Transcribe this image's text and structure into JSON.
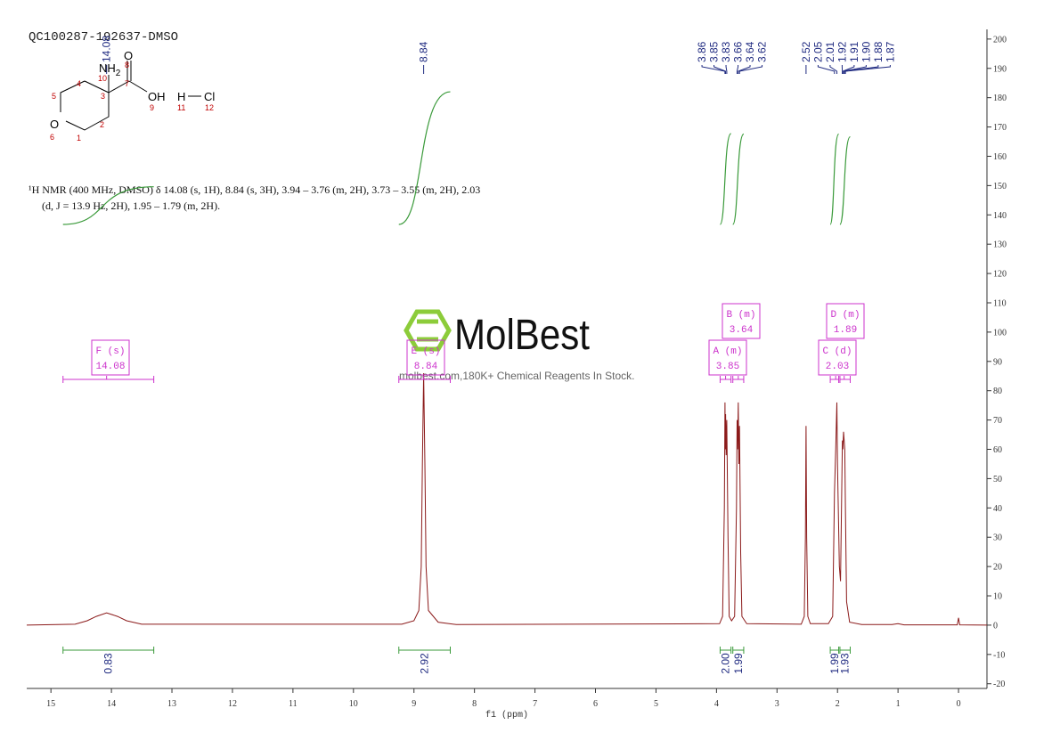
{
  "chart_data": {
    "type": "nmr",
    "title": "QC100287-192637-DMSO",
    "x_label": "f1 (ppm)",
    "xlim": [
      15.4,
      -0.47
    ],
    "xticks": [
      0,
      1,
      2,
      3,
      4,
      5,
      6,
      7,
      8,
      9,
      10,
      11,
      12,
      13,
      14,
      15
    ],
    "ylim": [
      -21.6,
      203.3
    ],
    "yticks": [
      -20,
      -10,
      0,
      10,
      20,
      30,
      40,
      50,
      60,
      70,
      80,
      90,
      100,
      110,
      120,
      130,
      140,
      150,
      160,
      170,
      180,
      190,
      200
    ],
    "color": "#8b1a1a",
    "x": [
      15.4,
      14.6,
      14.4,
      14.25,
      14.08,
      13.9,
      13.75,
      13.5,
      9.2,
      9.0,
      8.92,
      8.88,
      8.86,
      8.84,
      8.82,
      8.8,
      8.76,
      8.6,
      8.3,
      3.95,
      3.9,
      3.87,
      3.86,
      3.855,
      3.85,
      3.84,
      3.83,
      3.81,
      3.79,
      3.75,
      3.7,
      3.67,
      3.66,
      3.65,
      3.64,
      3.63,
      3.62,
      3.6,
      3.58,
      3.5,
      2.6,
      2.55,
      2.53,
      2.52,
      2.51,
      2.49,
      2.45,
      2.15,
      2.08,
      2.06,
      2.05,
      2.03,
      2.01,
      2.0,
      1.97,
      1.95,
      1.92,
      1.91,
      1.9,
      1.88,
      1.87,
      1.85,
      1.8,
      1.6,
      1.1,
      1.0,
      0.9,
      0.02,
      0.0,
      -0.02,
      -0.47
    ],
    "values": [
      0,
      0.3,
      1.5,
      3,
      4.2,
      3,
      1.5,
      0.3,
      0.3,
      1.5,
      5,
      20,
      55,
      86,
      55,
      20,
      5,
      1,
      0.2,
      0.5,
      3,
      40,
      76,
      60,
      72,
      58,
      70,
      30,
      3,
      1.5,
      3,
      40,
      70,
      60,
      76,
      55,
      68,
      25,
      3,
      0.5,
      0.3,
      3,
      30,
      68,
      30,
      3,
      0.5,
      0.5,
      3,
      30,
      45,
      60,
      76,
      55,
      20,
      15,
      63,
      60,
      66,
      60,
      40,
      8,
      1,
      0.2,
      0.2,
      0.5,
      0.1,
      0.1,
      2.5,
      0.1,
      0
    ],
    "peak_labels": [
      14.08,
      8.84,
      3.86,
      3.85,
      3.83,
      3.66,
      3.64,
      3.62,
      2.52,
      2.05,
      2.01,
      1.92,
      1.91,
      {
        "value": 1.9,
        "label": "1.90"
      },
      1.88,
      1.87
    ],
    "peak_label_color": "#1f2a80",
    "integral_color": "#3a9a3a",
    "integrals": [
      {
        "range": [
          14.8,
          13.3
        ],
        "value": 0.83
      },
      {
        "range": [
          9.25,
          8.4
        ],
        "value": 2.92
      },
      {
        "range": [
          3.94,
          3.76
        ],
        "value": {
          "value": 2.0,
          "label": "2.00"
        }
      },
      {
        "range": [
          3.73,
          3.55
        ],
        "value": 1.99
      },
      {
        "range": [
          2.12,
          1.98
        ],
        "value": 1.99
      },
      {
        "range": [
          1.96,
          1.79
        ],
        "value": 1.93
      }
    ],
    "multiplet_color": "#cc33cc",
    "multiplets": [
      {
        "label": "F (s)",
        "shift": 14.08,
        "range": [
          14.8,
          13.3
        ]
      },
      {
        "label": "E (s)",
        "shift": 8.84,
        "range": [
          9.25,
          8.4
        ]
      },
      {
        "label": "B (m)",
        "shift": 3.64,
        "range": [
          3.73,
          3.55
        ]
      },
      {
        "label": "A (m)",
        "shift": 3.85,
        "range": [
          3.94,
          3.76
        ]
      },
      {
        "label": "D (m)",
        "shift": 1.89,
        "range": [
          1.96,
          1.79
        ]
      },
      {
        "label": "C (d)",
        "shift": 2.03,
        "range": [
          2.12,
          1.98
        ]
      }
    ]
  },
  "structure": {
    "amine": {
      "label": "NH",
      "subscript": 2
    },
    "atoms": [
      "O",
      "OH",
      "H",
      "Cl",
      "O"
    ],
    "numbers": [
      10,
      8,
      7,
      3,
      4,
      5,
      2,
      1,
      6,
      9,
      11,
      12
    ]
  },
  "description": [
    "¹H NMR (400 MHz, DMSO) δ 14.08 (s, 1H), 8.84 (s, 3H), 3.94 – 3.76 (m, 2H), 3.73 – 3.55 (m, 2H), 2.03",
    "(d, J = 13.9 Hz, 2H), 1.95 – 1.79 (m, 2H)."
  ],
  "watermark": {
    "brand": "MolBest",
    "tagline": "molbest.com,180K+ Chemical Reagents In Stock."
  }
}
